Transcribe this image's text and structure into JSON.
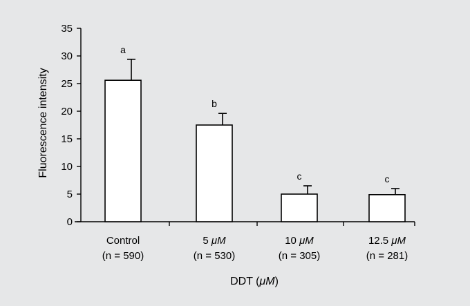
{
  "page": {
    "background": "#e6e7e8"
  },
  "chart_data": {
    "type": "bar",
    "categories": [
      "Control",
      "5 μM",
      "10 μM",
      "12.5 μM"
    ],
    "category_units": [
      "",
      "μM",
      "μM",
      "μM"
    ],
    "category_numbers": [
      "",
      "5",
      "10",
      "12.5"
    ],
    "category_sublabels": [
      "(n = 590)",
      "(n = 530)",
      "(n = 305)",
      "(n = 281)"
    ],
    "values": [
      25.6,
      17.5,
      5.0,
      4.9
    ],
    "error_upper": [
      29.4,
      19.6,
      6.5,
      6.0
    ],
    "significance_letters": [
      "a",
      "b",
      "c",
      "c"
    ],
    "ylabel": "Fluorescence intensity",
    "xlabel_prefix": "DDT (",
    "xlabel_unit": "μM",
    "xlabel_suffix": ")",
    "ylim": [
      0,
      35
    ],
    "yticks": [
      0,
      5,
      10,
      15,
      20,
      25,
      30,
      35
    ],
    "grid": false,
    "bar_fill": "#ffffff",
    "bar_stroke": "#000000"
  }
}
